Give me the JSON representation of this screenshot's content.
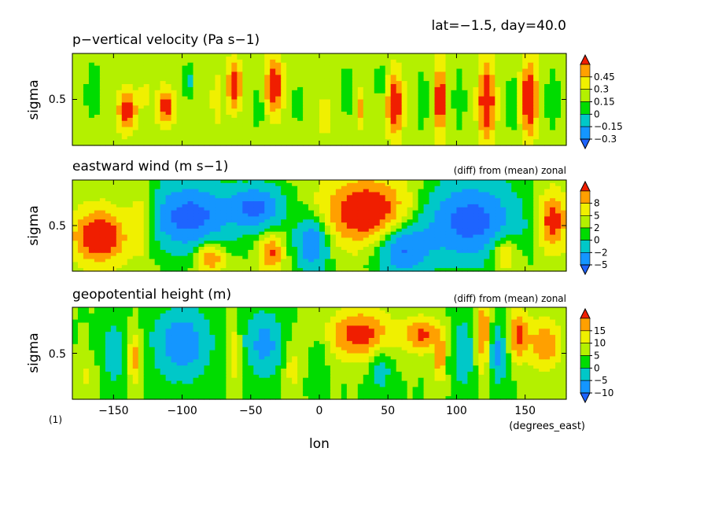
{
  "header": {
    "info": "lat=−1.5, day=40.0"
  },
  "footer": {
    "figure_number": "(1)",
    "x_unit": "(degrees_east)",
    "x_label": "lon"
  },
  "colors": {
    "levels": [
      "#1e64ff",
      "#1496ff",
      "#00c8c8",
      "#00dc00",
      "#b4f000",
      "#f0f000",
      "#ffa000",
      "#f01e00"
    ]
  },
  "chart_data": [
    {
      "type": "heatmap",
      "title": "p−vertical velocity (Pa s−1)",
      "subtitle": "",
      "ylabel": "sigma",
      "xlim": [
        -180,
        180
      ],
      "ylim": [
        1,
        0
      ],
      "x_ticks": [
        -150,
        -100,
        -50,
        0,
        50,
        100,
        150
      ],
      "y_ticks": [
        0.5
      ],
      "y_tick_labels": [
        "0.5"
      ],
      "colorbar": {
        "labels": [
          "0.45",
          "0.3",
          "0.15",
          "0",
          "−0.15",
          "−0.3"
        ],
        "boundaries": [
          -0.45,
          -0.3,
          -0.15,
          0,
          0.15,
          0.3,
          0.45,
          0.6
        ]
      },
      "background_value": 0.07,
      "blobs": [
        {
          "lon": -140,
          "sigma": 0.62,
          "rx": 7,
          "ry": 0.22,
          "value": 0.5
        },
        {
          "lon": -112,
          "sigma": 0.58,
          "rx": 6,
          "ry": 0.2,
          "value": 0.48
        },
        {
          "lon": -127,
          "sigma": 0.45,
          "rx": 4,
          "ry": 0.12,
          "value": 0.2
        },
        {
          "lon": -95,
          "sigma": 0.3,
          "rx": 4,
          "ry": 0.2,
          "value": -0.25
        },
        {
          "lon": -75,
          "sigma": 0.5,
          "rx": 3,
          "ry": 0.25,
          "value": 0.25
        },
        {
          "lon": -62,
          "sigma": 0.35,
          "rx": 5,
          "ry": 0.26,
          "value": 0.55
        },
        {
          "lon": -45,
          "sigma": 0.6,
          "rx": 4,
          "ry": 0.2,
          "value": -0.22
        },
        {
          "lon": -33,
          "sigma": 0.35,
          "rx": 6,
          "ry": 0.3,
          "value": 0.58
        },
        {
          "lon": -15,
          "sigma": 0.55,
          "rx": 4,
          "ry": 0.2,
          "value": -0.2
        },
        {
          "lon": 4,
          "sigma": 0.7,
          "rx": 3,
          "ry": 0.2,
          "value": 0.3
        },
        {
          "lon": 20,
          "sigma": 0.4,
          "rx": 5,
          "ry": 0.25,
          "value": -0.22
        },
        {
          "lon": 30,
          "sigma": 0.6,
          "rx": 3,
          "ry": 0.22,
          "value": 0.3
        },
        {
          "lon": 45,
          "sigma": 0.3,
          "rx": 4,
          "ry": 0.2,
          "value": -0.2
        },
        {
          "lon": 55,
          "sigma": 0.55,
          "rx": 6,
          "ry": 0.35,
          "value": 0.55
        },
        {
          "lon": 75,
          "sigma": 0.5,
          "rx": 4,
          "ry": 0.3,
          "value": -0.2
        },
        {
          "lon": 88,
          "sigma": 0.5,
          "rx": 4,
          "ry": 0.38,
          "value": 0.58
        },
        {
          "lon": 102,
          "sigma": 0.5,
          "rx": 4,
          "ry": 0.3,
          "value": -0.22
        },
        {
          "lon": 122,
          "sigma": 0.52,
          "rx": 6,
          "ry": 0.42,
          "value": 0.6
        },
        {
          "lon": 140,
          "sigma": 0.55,
          "rx": 4,
          "ry": 0.3,
          "value": -0.22
        },
        {
          "lon": 153,
          "sigma": 0.5,
          "rx": 6,
          "ry": 0.4,
          "value": 0.6
        },
        {
          "lon": 170,
          "sigma": 0.5,
          "rx": 5,
          "ry": 0.3,
          "value": -0.2
        },
        {
          "lon": -165,
          "sigma": 0.4,
          "rx": 5,
          "ry": 0.3,
          "value": -0.22
        }
      ]
    },
    {
      "type": "heatmap",
      "title": "eastward wind (m s−1)",
      "subtitle": "(diff) from (mean) zonal",
      "ylabel": "sigma",
      "xlim": [
        -180,
        180
      ],
      "ylim": [
        1,
        0
      ],
      "x_ticks": [
        -150,
        -100,
        -50,
        0,
        50,
        100,
        150
      ],
      "y_ticks": [
        0.5
      ],
      "y_tick_labels": [
        "0.5"
      ],
      "colorbar": {
        "labels": [
          "8",
          "5",
          "2",
          "0",
          "−2",
          "−5"
        ],
        "boundaries": [
          -8,
          -5,
          -2,
          0,
          2,
          5,
          8,
          11
        ]
      },
      "background_value": 0.5,
      "blobs": [
        {
          "lon": -160,
          "sigma": 0.62,
          "rx": 18,
          "ry": 0.28,
          "value": 12
        },
        {
          "lon": -130,
          "sigma": 0.45,
          "rx": 10,
          "ry": 0.35,
          "value": 5
        },
        {
          "lon": -95,
          "sigma": 0.4,
          "rx": 30,
          "ry": 0.38,
          "value": -10
        },
        {
          "lon": -80,
          "sigma": 0.85,
          "rx": 10,
          "ry": 0.15,
          "value": 9
        },
        {
          "lon": -45,
          "sigma": 0.3,
          "rx": 20,
          "ry": 0.25,
          "value": -9
        },
        {
          "lon": -35,
          "sigma": 0.8,
          "rx": 8,
          "ry": 0.2,
          "value": 8
        },
        {
          "lon": -5,
          "sigma": 0.7,
          "rx": 12,
          "ry": 0.3,
          "value": -9
        },
        {
          "lon": 35,
          "sigma": 0.35,
          "rx": 30,
          "ry": 0.35,
          "value": 12
        },
        {
          "lon": 60,
          "sigma": 0.75,
          "rx": 20,
          "ry": 0.3,
          "value": -9
        },
        {
          "lon": 110,
          "sigma": 0.45,
          "rx": 35,
          "ry": 0.45,
          "value": -10
        },
        {
          "lon": 135,
          "sigma": 0.8,
          "rx": 10,
          "ry": 0.2,
          "value": 6
        },
        {
          "lon": 170,
          "sigma": 0.45,
          "rx": 10,
          "ry": 0.3,
          "value": 10
        }
      ]
    },
    {
      "type": "heatmap",
      "title": "geopotential height (m)",
      "subtitle": "(diff) from (mean) zonal",
      "ylabel": "sigma",
      "xlim": [
        -180,
        180
      ],
      "ylim": [
        1,
        0
      ],
      "x_ticks": [
        -150,
        -100,
        -50,
        0,
        50,
        100,
        150
      ],
      "x_tick_labels": [
        "−150",
        "−100",
        "−50",
        "0",
        "50",
        "100",
        "150"
      ],
      "y_ticks": [
        0.5
      ],
      "y_tick_labels": [
        "0.5"
      ],
      "colorbar": {
        "labels": [
          "15",
          "10",
          "5",
          "0",
          "−5",
          "−10"
        ],
        "boundaries": [
          -15,
          -10,
          -5,
          0,
          5,
          10,
          15,
          20
        ]
      },
      "background_value": 0,
      "blobs": [
        {
          "lon": -150,
          "sigma": 0.5,
          "rx": 10,
          "ry": 0.4,
          "value": -8
        },
        {
          "lon": -135,
          "sigma": 0.55,
          "rx": 5,
          "ry": 0.3,
          "value": 14
        },
        {
          "lon": -100,
          "sigma": 0.4,
          "rx": 22,
          "ry": 0.42,
          "value": -14
        },
        {
          "lon": -62,
          "sigma": 0.5,
          "rx": 4,
          "ry": 0.35,
          "value": 10
        },
        {
          "lon": -40,
          "sigma": 0.4,
          "rx": 15,
          "ry": 0.38,
          "value": -12
        },
        {
          "lon": -20,
          "sigma": 0.65,
          "rx": 6,
          "ry": 0.3,
          "value": 8
        },
        {
          "lon": 0,
          "sigma": 0.55,
          "rx": 6,
          "ry": 0.3,
          "value": -6
        },
        {
          "lon": 30,
          "sigma": 0.3,
          "rx": 25,
          "ry": 0.28,
          "value": 18
        },
        {
          "lon": 45,
          "sigma": 0.65,
          "rx": 8,
          "ry": 0.25,
          "value": -10
        },
        {
          "lon": 75,
          "sigma": 0.3,
          "rx": 12,
          "ry": 0.2,
          "value": 16
        },
        {
          "lon": 88,
          "sigma": 0.55,
          "rx": 4,
          "ry": 0.3,
          "value": 14
        },
        {
          "lon": 105,
          "sigma": 0.5,
          "rx": 8,
          "ry": 0.4,
          "value": -10
        },
        {
          "lon": 120,
          "sigma": 0.3,
          "rx": 5,
          "ry": 0.5,
          "value": 16
        },
        {
          "lon": 130,
          "sigma": 0.5,
          "rx": 8,
          "ry": 0.35,
          "value": -12
        },
        {
          "lon": 145,
          "sigma": 0.3,
          "rx": 8,
          "ry": 0.3,
          "value": 16
        },
        {
          "lon": 165,
          "sigma": 0.4,
          "rx": 12,
          "ry": 0.3,
          "value": 14
        },
        {
          "lon": -170,
          "sigma": 0.75,
          "rx": 8,
          "ry": 0.2,
          "value": 6
        }
      ]
    }
  ]
}
